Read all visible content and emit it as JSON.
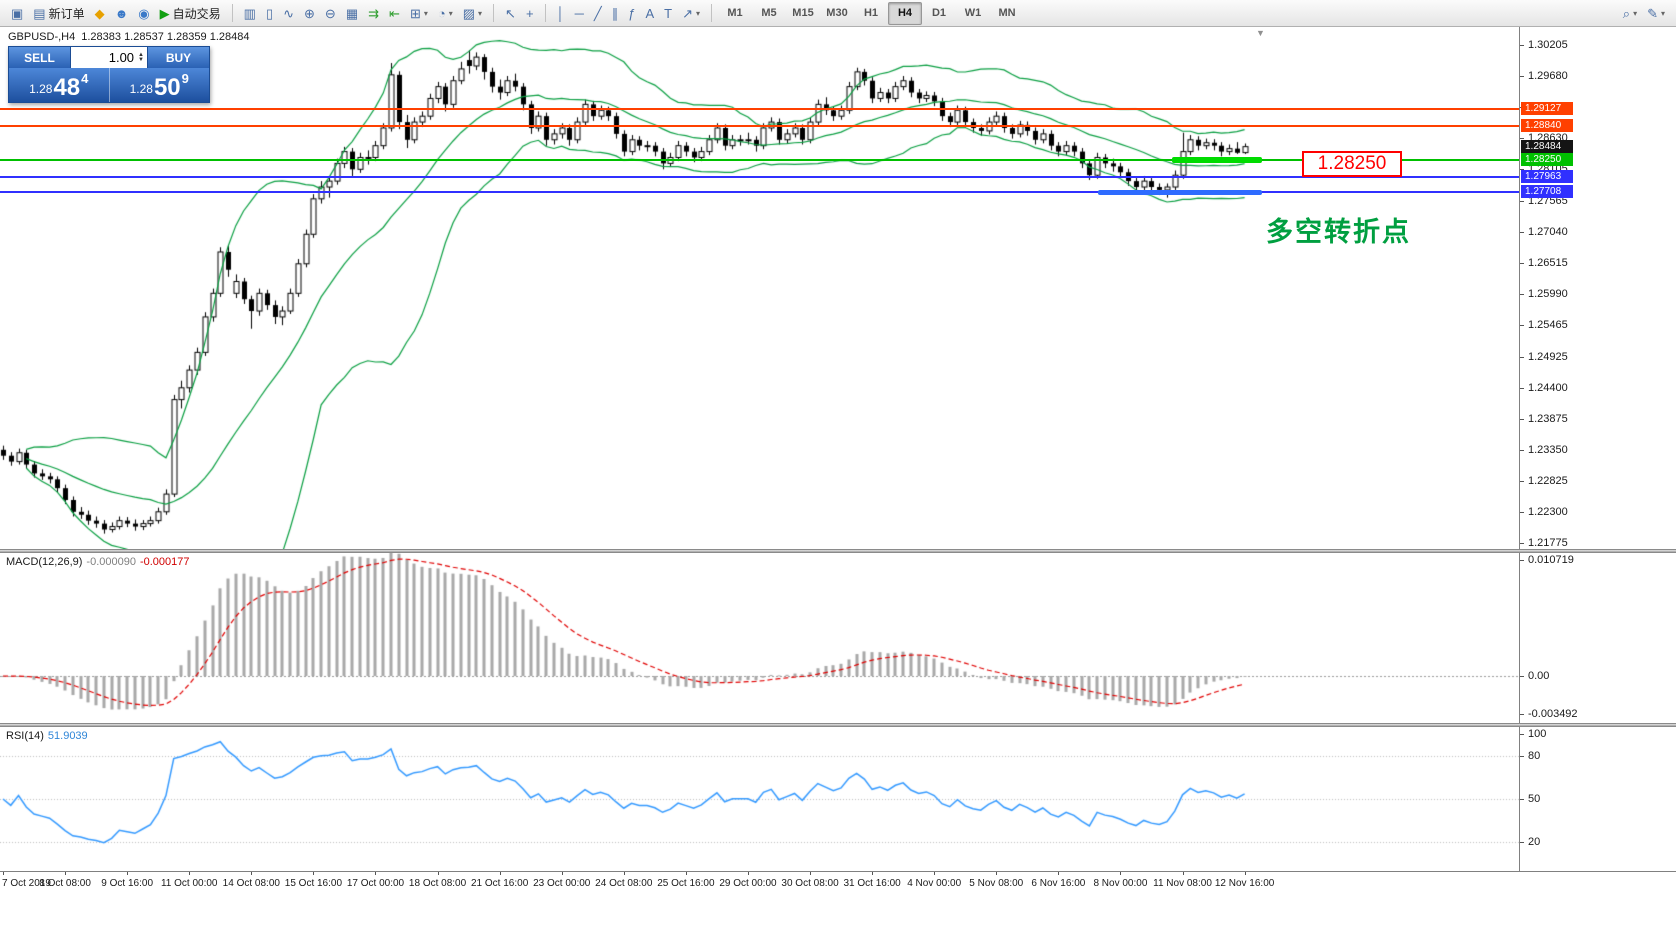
{
  "toolbar": {
    "groups": [
      {
        "items": [
          {
            "name": "new-chart-button",
            "glyph": "▣"
          },
          {
            "name": "new-order-button",
            "glyph": "▤",
            "label": "新订单"
          },
          {
            "name": "mql5-button",
            "glyph": "◆",
            "color": "#e7a100"
          },
          {
            "name": "community-button",
            "glyph": "☻",
            "color": "#3a79c8"
          },
          {
            "name": "support-button",
            "glyph": "◉",
            "color": "#3a79c8"
          },
          {
            "name": "auto-trading-button",
            "glyph": "▶",
            "color": "#12a012",
            "label": "自动交易"
          }
        ]
      },
      {
        "items": [
          {
            "name": "bar-chart-button",
            "glyph": "▥"
          },
          {
            "name": "candlestick-chart-button",
            "glyph": "▯"
          },
          {
            "name": "line-chart-button",
            "glyph": "∿"
          },
          {
            "name": "zoom-in-button",
            "glyph": "⊕"
          },
          {
            "name": "zoom-out-button",
            "glyph": "⊖"
          },
          {
            "name": "tile-windows-button",
            "glyph": "▦"
          },
          {
            "name": "auto-scroll-button",
            "glyph": "⇉",
            "color": "#2f9e2f"
          },
          {
            "name": "chart-shift-button",
            "glyph": "⇤",
            "color": "#2f9e2f"
          },
          {
            "name": "indicators-button",
            "glyph": "⊞",
            "dropdown": true
          },
          {
            "name": "periods-button",
            "glyph": "◔",
            "dropdown": true
          },
          {
            "name": "templates-button",
            "glyph": "▨",
            "dropdown": true
          }
        ]
      },
      {
        "items": [
          {
            "name": "cursor-button",
            "glyph": "↖"
          },
          {
            "name": "crosshair-button",
            "glyph": "+"
          }
        ]
      },
      {
        "items": [
          {
            "name": "vertical-line-button",
            "glyph": "│"
          },
          {
            "name": "horizontal-line-button",
            "glyph": "─"
          },
          {
            "name": "trendline-button",
            "glyph": "╱"
          },
          {
            "name": "channel-button",
            "glyph": "∥"
          },
          {
            "name": "fibonacci-button",
            "glyph": "ƒ"
          },
          {
            "name": "text-button",
            "glyph": "A"
          },
          {
            "name": "label-button",
            "glyph": "T"
          },
          {
            "name": "arrows-button",
            "glyph": "↗",
            "dropdown": true
          }
        ]
      }
    ],
    "timeframes": [
      "M1",
      "M5",
      "M15",
      "M30",
      "H1",
      "H4",
      "D1",
      "W1",
      "MN"
    ],
    "active_timeframe": "H4",
    "right_items": [
      {
        "name": "search-button",
        "glyph": "⌕",
        "dropdown": true
      },
      {
        "name": "quick-edit-button",
        "glyph": "✎",
        "dropdown": true
      }
    ]
  },
  "one_click": {
    "sell_label": "SELL",
    "buy_label": "BUY",
    "volume": "1.00",
    "sell_price_prefix": "1.28",
    "sell_price_big": "48",
    "sell_price_sup": "4",
    "buy_price_prefix": "1.28",
    "buy_price_big": "50",
    "buy_price_sup": "9"
  },
  "chart": {
    "symbol": "GBPUSD-,H4",
    "ohlc": "1.28383 1.28537 1.28359 1.28484",
    "current_price_tag": "1.28484",
    "annotations": {
      "price_box": "1.28250",
      "cn_text": "多空转折点"
    }
  },
  "macd": {
    "label": "MACD(12,26,9)",
    "value1": "-0.000090",
    "value2": "-0.000177"
  },
  "rsi": {
    "label": "RSI(14)",
    "value": "51.9039"
  },
  "chart_data": {
    "type": "candlestick",
    "symbol": "GBPUSD",
    "timeframe": "H4",
    "title": "GBPUSD-,H4 1.28383 1.28537 1.28359 1.28484",
    "price_range": [
      1.2167,
      1.3051
    ],
    "grid": false,
    "price_ticks": [
      "1.30205",
      "1.29680",
      "1.29155",
      "1.28630",
      "1.28105",
      "1.27565",
      "1.27040",
      "1.26515",
      "1.25990",
      "1.25465",
      "1.24925",
      "1.24400",
      "1.23875",
      "1.23350",
      "1.22825",
      "1.22300",
      "1.21775"
    ],
    "macd_ticks": [
      "0.010719",
      "0.00",
      "-0.003492"
    ],
    "rsi_ticks": [
      "100",
      "80",
      "50",
      "20"
    ],
    "time_labels": [
      "7 Oct 2019",
      "8 Oct 08:00",
      "9 Oct 16:00",
      "11 Oct 00:00",
      "14 Oct 08:00",
      "15 Oct 16:00",
      "17 Oct 00:00",
      "18 Oct 08:00",
      "21 Oct 16:00",
      "23 Oct 00:00",
      "24 Oct 08:00",
      "25 Oct 16:00",
      "29 Oct 00:00",
      "30 Oct 08:00",
      "31 Oct 16:00",
      "4 Nov 00:00",
      "5 Nov 08:00",
      "6 Nov 16:00",
      "8 Nov 00:00",
      "11 Nov 08:00",
      "12 Nov 16:00"
    ],
    "levels": [
      {
        "price": 1.29127,
        "label": "1.29127",
        "color": "#ff4000"
      },
      {
        "price": 1.2884,
        "label": "1.28840",
        "color": "#ff4000"
      },
      {
        "price": 1.2825,
        "label": "1.28250",
        "color": "#00c000"
      },
      {
        "price": 1.27963,
        "label": "1.27963",
        "color": "#3030ff"
      },
      {
        "price": 1.27708,
        "label": "1.27708",
        "color": "#3030ff"
      }
    ],
    "indicators": {
      "bollinger": {
        "period": 20,
        "deviation": 2,
        "color": "#089e40"
      },
      "macd": {
        "fast": 12,
        "slow": 26,
        "signal": 9,
        "histogram_color": "#a8a8a8",
        "signal_color": "#e00000"
      },
      "rsi": {
        "period": 14,
        "color": "#3399ff",
        "levels": [
          80,
          50,
          20
        ],
        "level_color": "#bdbdbd"
      }
    },
    "candles": [
      [
        1.2335,
        1.2342,
        1.2318,
        1.2325
      ],
      [
        1.2325,
        1.2331,
        1.2308,
        1.2315
      ],
      [
        1.2315,
        1.2337,
        1.231,
        1.233
      ],
      [
        1.233,
        1.2335,
        1.2303,
        1.231
      ],
      [
        1.231,
        1.2316,
        1.2288,
        1.2295
      ],
      [
        1.2295,
        1.2302,
        1.2284,
        1.229
      ],
      [
        1.229,
        1.2296,
        1.2278,
        1.2285
      ],
      [
        1.2285,
        1.229,
        1.2262,
        1.227
      ],
      [
        1.227,
        1.2276,
        1.2243,
        1.225
      ],
      [
        1.225,
        1.2256,
        1.2222,
        1.223
      ],
      [
        1.223,
        1.2238,
        1.2218,
        1.2225
      ],
      [
        1.2225,
        1.2232,
        1.2208,
        1.2215
      ],
      [
        1.2215,
        1.2222,
        1.2203,
        1.221
      ],
      [
        1.221,
        1.2216,
        1.2193,
        1.22
      ],
      [
        1.22,
        1.2212,
        1.2195,
        1.2205
      ],
      [
        1.2205,
        1.2222,
        1.22,
        1.2215
      ],
      [
        1.2215,
        1.2221,
        1.2204,
        1.221
      ],
      [
        1.221,
        1.2217,
        1.2198,
        1.2205
      ],
      [
        1.2205,
        1.2216,
        1.2199,
        1.221
      ],
      [
        1.221,
        1.2222,
        1.2205,
        1.2215
      ],
      [
        1.2215,
        1.2237,
        1.221,
        1.223
      ],
      [
        1.223,
        1.2268,
        1.2225,
        1.226
      ],
      [
        1.226,
        1.2428,
        1.2255,
        1.242
      ],
      [
        1.242,
        1.2452,
        1.2405,
        1.244
      ],
      [
        1.244,
        1.2478,
        1.2432,
        1.247
      ],
      [
        1.247,
        1.2508,
        1.2462,
        1.25
      ],
      [
        1.25,
        1.2568,
        1.2494,
        1.256
      ],
      [
        1.256,
        1.2608,
        1.2552,
        1.26
      ],
      [
        1.26,
        1.2678,
        1.2594,
        1.267
      ],
      [
        1.267,
        1.2682,
        1.2628,
        1.264
      ],
      [
        1.26,
        1.2632,
        1.2592,
        1.262
      ],
      [
        1.262,
        1.2626,
        1.2582,
        1.259
      ],
      [
        1.259,
        1.2596,
        1.254,
        1.257
      ],
      [
        1.257,
        1.2608,
        1.2562,
        1.26
      ],
      [
        1.26,
        1.2606,
        1.2572,
        1.258
      ],
      [
        1.258,
        1.2588,
        1.2548,
        1.256
      ],
      [
        1.256,
        1.2578,
        1.2546,
        1.257
      ],
      [
        1.257,
        1.2608,
        1.2565,
        1.26
      ],
      [
        1.26,
        1.2658,
        1.2594,
        1.265
      ],
      [
        1.265,
        1.2708,
        1.2644,
        1.27
      ],
      [
        1.27,
        1.2768,
        1.2694,
        1.276
      ],
      [
        1.276,
        1.279,
        1.2752,
        1.278
      ],
      [
        1.278,
        1.2798,
        1.2762,
        1.279
      ],
      [
        1.279,
        1.2828,
        1.2784,
        1.282
      ],
      [
        1.282,
        1.2848,
        1.2812,
        1.284
      ],
      [
        1.284,
        1.2846,
        1.2798,
        1.281
      ],
      [
        1.281,
        1.2838,
        1.2804,
        1.283
      ],
      [
        1.283,
        1.2842,
        1.2818,
        1.283
      ],
      [
        1.283,
        1.2858,
        1.2824,
        1.285
      ],
      [
        1.285,
        1.2888,
        1.2844,
        1.288
      ],
      [
        1.288,
        1.299,
        1.2874,
        1.297
      ],
      [
        1.297,
        1.2976,
        1.2878,
        1.289
      ],
      [
        1.289,
        1.2902,
        1.2846,
        1.286
      ],
      [
        1.286,
        1.2898,
        1.2854,
        1.289
      ],
      [
        1.289,
        1.2908,
        1.2882,
        1.29
      ],
      [
        1.29,
        1.2938,
        1.2894,
        1.293
      ],
      [
        1.293,
        1.2958,
        1.2922,
        1.295
      ],
      [
        1.295,
        1.2956,
        1.2908,
        1.292
      ],
      [
        1.292,
        1.2968,
        1.2914,
        1.296
      ],
      [
        1.296,
        1.2992,
        1.2954,
        1.298
      ],
      [
        1.2995,
        1.3012,
        1.2972,
        1.2985
      ],
      [
        1.2985,
        1.3008,
        1.2978,
        1.3
      ],
      [
        1.3,
        1.3005,
        1.2962,
        1.2975
      ],
      [
        1.2975,
        1.2982,
        1.294,
        1.295
      ],
      [
        1.295,
        1.2962,
        1.2928,
        1.294
      ],
      [
        1.294,
        1.2968,
        1.2934,
        1.296
      ],
      [
        1.296,
        1.2972,
        1.2942,
        1.295
      ],
      [
        1.295,
        1.2956,
        1.291,
        1.292
      ],
      [
        1.292,
        1.2926,
        1.287,
        1.288
      ],
      [
        1.288,
        1.2908,
        1.2874,
        1.29
      ],
      [
        1.29,
        1.2906,
        1.285,
        1.286
      ],
      [
        1.286,
        1.2878,
        1.2852,
        1.287
      ],
      [
        1.287,
        1.2888,
        1.2862,
        1.288
      ],
      [
        1.288,
        1.2886,
        1.285,
        1.286
      ],
      [
        1.286,
        1.2898,
        1.2854,
        1.289
      ],
      [
        1.289,
        1.2928,
        1.2884,
        1.292
      ],
      [
        1.292,
        1.2926,
        1.2892,
        1.29
      ],
      [
        1.29,
        1.2918,
        1.2894,
        1.291
      ],
      [
        1.291,
        1.2916,
        1.2892,
        1.29
      ],
      [
        1.29,
        1.2906,
        1.2862,
        1.287
      ],
      [
        1.287,
        1.2876,
        1.2832,
        1.284
      ],
      [
        1.284,
        1.2868,
        1.2834,
        1.286
      ],
      [
        1.286,
        1.2866,
        1.2842,
        1.285
      ],
      [
        1.285,
        1.2858,
        1.284,
        1.285
      ],
      [
        1.285,
        1.2856,
        1.2832,
        1.284
      ],
      [
        1.284,
        1.2846,
        1.281,
        1.282
      ],
      [
        1.282,
        1.2838,
        1.2814,
        1.283
      ],
      [
        1.283,
        1.2858,
        1.2824,
        1.285
      ],
      [
        1.285,
        1.2856,
        1.2832,
        1.284
      ],
      [
        1.284,
        1.2846,
        1.2822,
        1.283
      ],
      [
        1.283,
        1.2848,
        1.2824,
        1.284
      ],
      [
        1.284,
        1.2868,
        1.2834,
        1.286
      ],
      [
        1.286,
        1.2888,
        1.2854,
        1.288
      ],
      [
        1.288,
        1.2886,
        1.2842,
        1.285
      ],
      [
        1.285,
        1.2868,
        1.2844,
        1.286
      ],
      [
        1.286,
        1.2868,
        1.285,
        1.286
      ],
      [
        1.286,
        1.2872,
        1.2852,
        1.286
      ],
      [
        1.286,
        1.2866,
        1.284,
        1.285
      ],
      [
        1.285,
        1.2888,
        1.2844,
        1.288
      ],
      [
        1.288,
        1.2898,
        1.2874,
        1.289
      ],
      [
        1.289,
        1.2896,
        1.2852,
        1.286
      ],
      [
        1.286,
        1.2878,
        1.2854,
        1.287
      ],
      [
        1.287,
        1.2888,
        1.2864,
        1.288
      ],
      [
        1.288,
        1.2886,
        1.2852,
        1.286
      ],
      [
        1.286,
        1.2898,
        1.2854,
        1.289
      ],
      [
        1.289,
        1.2928,
        1.2884,
        1.292
      ],
      [
        1.292,
        1.2932,
        1.2902,
        1.291
      ],
      [
        1.291,
        1.2916,
        1.2892,
        1.29
      ],
      [
        1.29,
        1.2918,
        1.2894,
        1.291
      ],
      [
        1.291,
        1.2958,
        1.2904,
        1.295
      ],
      [
        1.295,
        1.2982,
        1.2944,
        1.2975
      ],
      [
        1.2975,
        1.298,
        1.2952,
        1.296
      ],
      [
        1.296,
        1.2966,
        1.2922,
        1.293
      ],
      [
        1.293,
        1.2948,
        1.2924,
        1.294
      ],
      [
        1.294,
        1.2946,
        1.2922,
        1.293
      ],
      [
        1.293,
        1.2958,
        1.2924,
        1.295
      ],
      [
        1.295,
        1.2968,
        1.2944,
        1.296
      ],
      [
        1.296,
        1.2966,
        1.2932,
        1.294
      ],
      [
        1.294,
        1.2946,
        1.2922,
        1.293
      ],
      [
        1.293,
        1.2942,
        1.2924,
        1.2935
      ],
      [
        1.2935,
        1.2941,
        1.2917,
        1.2925
      ],
      [
        1.2925,
        1.2931,
        1.2892,
        1.29
      ],
      [
        1.29,
        1.2906,
        1.2882,
        1.289
      ],
      [
        1.289,
        1.2918,
        1.2884,
        1.291
      ],
      [
        1.291,
        1.2916,
        1.2882,
        1.289
      ],
      [
        1.289,
        1.2896,
        1.2872,
        1.288
      ],
      [
        1.288,
        1.2886,
        1.2867,
        1.2875
      ],
      [
        1.2875,
        1.2898,
        1.2869,
        1.289
      ],
      [
        1.289,
        1.2908,
        1.2884,
        1.29
      ],
      [
        1.29,
        1.2906,
        1.2872,
        1.288
      ],
      [
        1.288,
        1.2886,
        1.2862,
        1.287
      ],
      [
        1.287,
        1.2892,
        1.2864,
        1.2885
      ],
      [
        1.2885,
        1.2891,
        1.2867,
        1.2875
      ],
      [
        1.2875,
        1.2881,
        1.2852,
        1.286
      ],
      [
        1.286,
        1.2878,
        1.2854,
        1.287
      ],
      [
        1.287,
        1.2876,
        1.2842,
        1.285
      ],
      [
        1.285,
        1.2856,
        1.2832,
        1.284
      ],
      [
        1.284,
        1.2858,
        1.2834,
        1.285
      ],
      [
        1.285,
        1.2856,
        1.2832,
        1.284
      ],
      [
        1.284,
        1.2846,
        1.2812,
        1.282
      ],
      [
        1.282,
        1.2826,
        1.2792,
        1.28
      ],
      [
        1.28,
        1.2838,
        1.2794,
        1.283
      ],
      [
        1.283,
        1.2836,
        1.2812,
        1.282
      ],
      [
        1.282,
        1.2828,
        1.2806,
        1.2815
      ],
      [
        1.2815,
        1.2821,
        1.2797,
        1.2805
      ],
      [
        1.2805,
        1.2811,
        1.2782,
        1.279
      ],
      [
        1.279,
        1.2796,
        1.277,
        1.278
      ],
      [
        1.278,
        1.2798,
        1.2774,
        1.279
      ],
      [
        1.279,
        1.2796,
        1.2772,
        1.278
      ],
      [
        1.278,
        1.2786,
        1.2767,
        1.2775
      ],
      [
        1.2775,
        1.2786,
        1.2762,
        1.278
      ],
      [
        1.278,
        1.2808,
        1.2774,
        1.28
      ],
      [
        1.28,
        1.2872,
        1.2794,
        1.284
      ],
      [
        1.284,
        1.2868,
        1.2834,
        1.286
      ],
      [
        1.286,
        1.2866,
        1.2842,
        1.285
      ],
      [
        1.285,
        1.2862,
        1.2844,
        1.2855
      ],
      [
        1.2855,
        1.2861,
        1.2842,
        1.285
      ],
      [
        1.285,
        1.2856,
        1.2832,
        1.284
      ],
      [
        1.284,
        1.2852,
        1.2834,
        1.2845
      ],
      [
        1.2845,
        1.2856,
        1.2836,
        1.2838
      ],
      [
        1.28383,
        1.28537,
        1.28359,
        1.28484
      ]
    ]
  }
}
